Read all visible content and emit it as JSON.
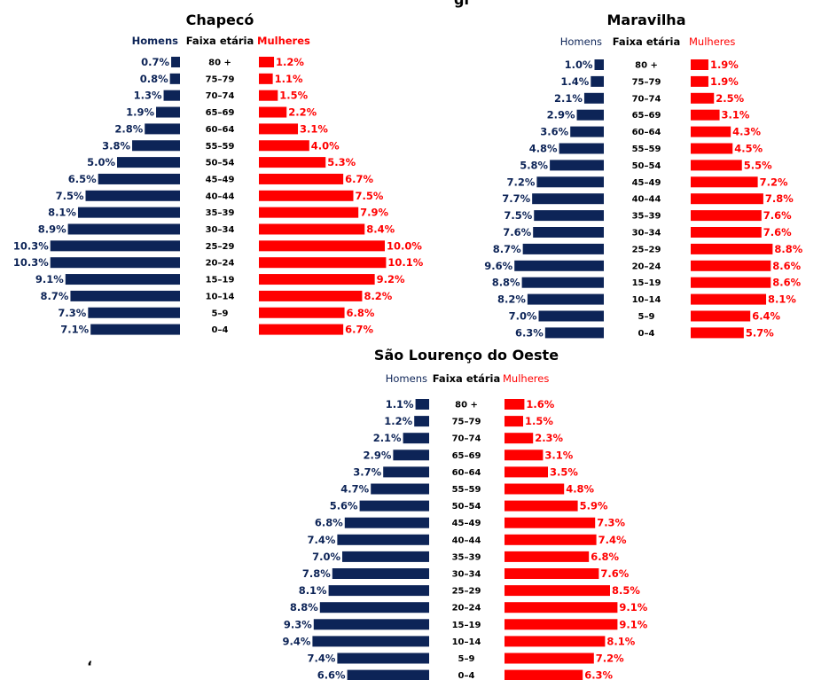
{
  "header_fragment": "gi",
  "stray_mark": "‘",
  "colors": {
    "homens": "#0d2457",
    "mulheres": "#ff0000",
    "text": "#000000"
  },
  "chart_data": [
    {
      "type": "bar",
      "title": "Chapecó",
      "series": [
        {
          "name": "Homens",
          "values": [
            0.7,
            0.8,
            1.3,
            1.9,
            2.8,
            3.8,
            5.0,
            6.5,
            7.5,
            8.1,
            8.9,
            10.3,
            10.3,
            9.1,
            8.7,
            7.3,
            7.1
          ]
        },
        {
          "name": "Mulheres",
          "values": [
            1.2,
            1.1,
            1.5,
            2.2,
            3.1,
            4.0,
            5.3,
            6.7,
            7.5,
            7.9,
            8.4,
            10.0,
            10.1,
            9.2,
            8.2,
            6.8,
            6.7
          ]
        }
      ],
      "center_header": "Faixa etária",
      "categories": [
        "80 +",
        "75–79",
        "70–74",
        "65–69",
        "60–64",
        "55–59",
        "50–54",
        "45–49",
        "40–44",
        "35–39",
        "30–34",
        "25–29",
        "20–24",
        "15–19",
        "10–14",
        "5–9",
        "0–4"
      ],
      "labels": {
        "homens": [
          "0.7%",
          "0.8%",
          "1.3%",
          "1.9%",
          "2.8%",
          "3.8%",
          "5.0%",
          "6.5%",
          "7.5%",
          "8.1%",
          "8.9%",
          "10.3%",
          "10.3%",
          "9.1%",
          "8.7%",
          "7.3%",
          "7.1%"
        ],
        "mulheres": [
          "1.2%",
          "1.1%",
          "1.5%",
          "2.2%",
          "3.1%",
          "4.0%",
          "5.3%",
          "6.7%",
          "7.5%",
          "7.9%",
          "8.4%",
          "10.0%",
          "10.1%",
          "9.2%",
          "8.2%",
          "6.8%",
          "6.7%"
        ]
      }
    },
    {
      "type": "bar",
      "title": "Maravilha",
      "series": [
        {
          "name": "Homens",
          "values": [
            1.0,
            1.4,
            2.1,
            2.9,
            3.6,
            4.8,
            5.8,
            7.2,
            7.7,
            7.5,
            7.6,
            8.7,
            9.6,
            8.8,
            8.2,
            7.0,
            6.3
          ]
        },
        {
          "name": "Mulheres",
          "values": [
            1.9,
            1.9,
            2.5,
            3.1,
            4.3,
            4.5,
            5.5,
            7.2,
            7.8,
            7.6,
            7.6,
            8.8,
            8.6,
            8.6,
            8.1,
            6.4,
            5.7
          ]
        }
      ],
      "center_header": "Faixa etária",
      "categories": [
        "80 +",
        "75–79",
        "70–74",
        "65–69",
        "60–64",
        "55–59",
        "50–54",
        "45–49",
        "40–44",
        "35–39",
        "30–34",
        "25–29",
        "20–24",
        "15–19",
        "10–14",
        "5–9",
        "0–4"
      ],
      "labels": {
        "homens": [
          "1.0%",
          "1.4%",
          "2.1%",
          "2.9%",
          "3.6%",
          "4.8%",
          "5.8%",
          "7.2%",
          "7.7%",
          "7.5%",
          "7.6%",
          "8.7%",
          "9.6%",
          "8.8%",
          "8.2%",
          "7.0%",
          "6.3%"
        ],
        "mulheres": [
          "1.9%",
          "1.9%",
          "2.5%",
          "3.1%",
          "4.3%",
          "4.5%",
          "5.5%",
          "7.2%",
          "7.8%",
          "7.6%",
          "7.6%",
          "8.8%",
          "8.6%",
          "8.6%",
          "8.1%",
          "6.4%",
          "5.7%"
        ]
      }
    },
    {
      "type": "bar",
      "title": "São Lourenço do Oeste",
      "series": [
        {
          "name": "Homens",
          "values": [
            1.1,
            1.2,
            2.1,
            2.9,
            3.7,
            4.7,
            5.6,
            6.8,
            7.4,
            7.0,
            7.8,
            8.1,
            8.8,
            9.3,
            9.4,
            7.4,
            6.6
          ]
        },
        {
          "name": "Mulheres",
          "values": [
            1.6,
            1.5,
            2.3,
            3.1,
            3.5,
            4.8,
            5.9,
            7.3,
            7.4,
            6.8,
            7.6,
            8.5,
            9.1,
            9.1,
            8.1,
            7.2,
            6.3
          ]
        }
      ],
      "center_header": "Faixa etária",
      "categories": [
        "80 +",
        "75–79",
        "70–74",
        "65–69",
        "60–64",
        "55–59",
        "50–54",
        "45–49",
        "40–44",
        "35–39",
        "30–34",
        "25–29",
        "20–24",
        "15–19",
        "10–14",
        "5–9",
        "0–4"
      ],
      "labels": {
        "homens": [
          "1.1%",
          "1.2%",
          "2.1%",
          "2.9%",
          "3.7%",
          "4.7%",
          "5.6%",
          "6.8%",
          "7.4%",
          "7.0%",
          "7.8%",
          "8.1%",
          "8.8%",
          "9.3%",
          "9.4%",
          "7.4%",
          "6.6%"
        ],
        "mulheres": [
          "1.6%",
          "1.5%",
          "2.3%",
          "3.1%",
          "3.5%",
          "4.8%",
          "5.9%",
          "7.3%",
          "7.4%",
          "6.8%",
          "7.6%",
          "8.5%",
          "9.1%",
          "9.1%",
          "8.1%",
          "7.2%",
          "6.3%"
        ]
      }
    }
  ]
}
